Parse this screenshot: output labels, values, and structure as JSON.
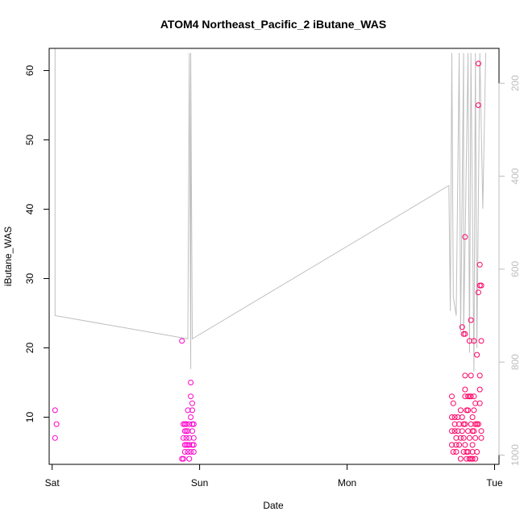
{
  "chart_data": {
    "type": "scatter",
    "title": "ATOM4 Northeast_Pacific_2 iButane_WAS",
    "xlabel": "Date",
    "ylabel": "iButane_WAS",
    "x_ticks": [
      "Sat",
      "Sun",
      "Mon",
      "Tue"
    ],
    "xlim": [
      -0.02,
      3.03
    ],
    "ylim": [
      3.2,
      63.2
    ],
    "y_ticks": [
      10,
      20,
      30,
      40,
      50,
      60
    ],
    "right_axis": {
      "ticks": [
        200,
        400,
        600,
        800,
        1000
      ],
      "range": [
        125,
        1020
      ],
      "reversed": true,
      "color": "#bdbdbd"
    },
    "grid": false,
    "marker": "open-circle",
    "colors": {
      "points": "#ff00cc",
      "points_late": "#ff0066",
      "line": "#bfbfbf",
      "frame": "#000000"
    },
    "series": [
      {
        "points": [
          [
            0.02,
            11
          ],
          [
            0.03,
            9
          ],
          [
            0.02,
            7
          ],
          [
            0.88,
            21
          ],
          [
            0.9,
            9
          ],
          [
            0.9,
            8
          ],
          [
            0.91,
            7
          ],
          [
            0.91,
            6
          ],
          [
            0.92,
            5
          ],
          [
            0.93,
            6
          ],
          [
            0.93,
            9
          ],
          [
            0.94,
            10
          ],
          [
            0.94,
            15
          ],
          [
            0.94,
            13
          ],
          [
            0.95,
            12
          ],
          [
            0.95,
            11
          ],
          [
            0.95,
            9
          ],
          [
            0.95,
            8
          ],
          [
            0.96,
            7
          ],
          [
            0.96,
            6
          ],
          [
            0.96,
            5
          ],
          [
            0.88,
            4
          ],
          [
            0.89,
            4
          ],
          [
            0.9,
            6
          ],
          [
            0.91,
            9
          ],
          [
            0.92,
            8
          ],
          [
            0.93,
            7
          ],
          [
            0.94,
            5
          ],
          [
            0.92,
            6
          ],
          [
            0.93,
            4
          ],
          [
            0.89,
            7
          ],
          [
            0.9,
            5
          ],
          [
            0.91,
            8
          ],
          [
            0.95,
            6
          ],
          [
            0.96,
            9
          ],
          [
            0.89,
            9
          ],
          [
            0.92,
            11
          ]
        ]
      },
      {
        "points": [
          [
            2.71,
            13
          ],
          [
            2.71,
            10
          ],
          [
            2.71,
            8
          ],
          [
            2.71,
            6
          ],
          [
            2.72,
            12
          ],
          [
            2.72,
            5
          ],
          [
            2.73,
            10
          ],
          [
            2.73,
            8
          ],
          [
            2.74,
            7
          ],
          [
            2.74,
            6
          ],
          [
            2.74,
            5
          ],
          [
            2.75,
            10
          ],
          [
            2.75,
            8
          ],
          [
            2.76,
            9
          ],
          [
            2.77,
            4
          ],
          [
            2.77,
            7
          ],
          [
            2.78,
            23
          ],
          [
            2.78,
            10
          ],
          [
            2.78,
            8
          ],
          [
            2.79,
            22
          ],
          [
            2.79,
            9
          ],
          [
            2.79,
            7
          ],
          [
            2.8,
            36
          ],
          [
            2.8,
            16
          ],
          [
            2.8,
            14
          ],
          [
            2.8,
            13
          ],
          [
            2.8,
            9
          ],
          [
            2.8,
            6
          ],
          [
            2.81,
            11
          ],
          [
            2.81,
            5
          ],
          [
            2.81,
            4
          ],
          [
            2.82,
            11
          ],
          [
            2.82,
            8
          ],
          [
            2.82,
            13
          ],
          [
            2.83,
            21
          ],
          [
            2.83,
            7
          ],
          [
            2.84,
            24
          ],
          [
            2.84,
            16
          ],
          [
            2.84,
            13
          ],
          [
            2.84,
            9
          ],
          [
            2.84,
            4
          ],
          [
            2.85,
            10
          ],
          [
            2.85,
            8
          ],
          [
            2.85,
            6
          ],
          [
            2.85,
            5
          ],
          [
            2.86,
            13
          ],
          [
            2.86,
            11
          ],
          [
            2.86,
            8
          ],
          [
            2.87,
            12
          ],
          [
            2.87,
            9
          ],
          [
            2.87,
            7
          ],
          [
            2.88,
            19
          ],
          [
            2.88,
            5
          ],
          [
            2.89,
            61
          ],
          [
            2.89,
            55
          ],
          [
            2.9,
            32
          ],
          [
            2.9,
            29
          ],
          [
            2.89,
            28
          ],
          [
            2.9,
            16
          ],
          [
            2.9,
            14
          ],
          [
            2.9,
            12
          ],
          [
            2.91,
            29
          ],
          [
            2.91,
            21
          ],
          [
            2.91,
            8
          ],
          [
            2.91,
            7
          ],
          [
            2.88,
            9
          ],
          [
            2.85,
            4
          ],
          [
            2.82,
            5
          ],
          [
            2.79,
            5
          ],
          [
            2.76,
            6
          ],
          [
            2.73,
            9
          ],
          [
            2.86,
            21
          ],
          [
            2.83,
            13
          ],
          [
            2.8,
            22
          ],
          [
            2.77,
            11
          ],
          [
            2.87,
            4
          ],
          [
            2.83,
            4
          ],
          [
            2.89,
            9
          ]
        ]
      }
    ],
    "secondary_line": {
      "axis": "right",
      "points": [
        [
          0.02,
          125
        ],
        [
          0.02,
          700
        ],
        [
          0.92,
          750
        ],
        [
          0.93,
          135
        ],
        [
          0.94,
          815
        ],
        [
          0.94,
          135
        ],
        [
          0.95,
          750
        ],
        [
          2.69,
          420
        ],
        [
          2.7,
          690
        ],
        [
          2.71,
          135
        ],
        [
          2.72,
          660
        ],
        [
          2.74,
          700
        ],
        [
          2.76,
          135
        ],
        [
          2.77,
          735
        ],
        [
          2.79,
          135
        ],
        [
          2.79,
          740
        ],
        [
          2.82,
          135
        ],
        [
          2.83,
          780
        ],
        [
          2.84,
          135
        ],
        [
          2.86,
          820
        ],
        [
          2.87,
          135
        ],
        [
          2.88,
          770
        ],
        [
          2.9,
          135
        ],
        [
          2.92,
          470
        ],
        [
          2.94,
          135
        ]
      ]
    }
  }
}
